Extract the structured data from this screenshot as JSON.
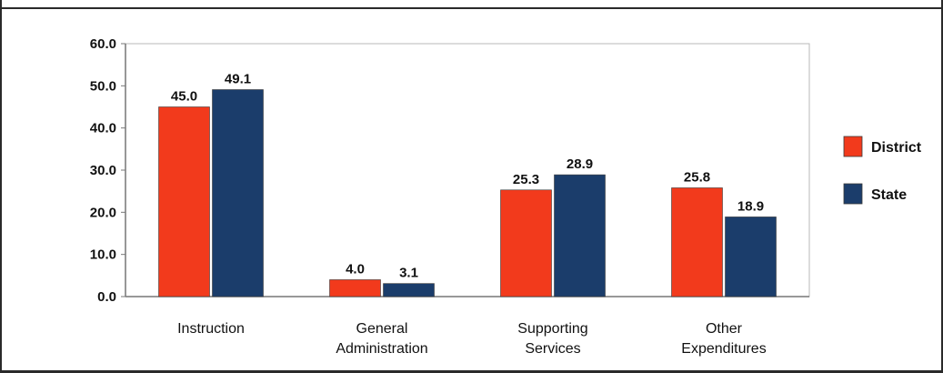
{
  "chart_data": {
    "type": "bar",
    "categories": [
      "Instruction",
      "General Administration",
      "Supporting Services",
      "Other Expenditures"
    ],
    "category_lines": [
      [
        "Instruction"
      ],
      [
        "General",
        "Administration"
      ],
      [
        "Supporting",
        "Services"
      ],
      [
        "Other",
        "Expenditures"
      ]
    ],
    "series": [
      {
        "name": "District",
        "color": "#f23a1c",
        "values": [
          45.0,
          4.0,
          25.3,
          25.8
        ],
        "labels": [
          "45.0",
          "4.0",
          "25.3",
          "25.8"
        ]
      },
      {
        "name": "State",
        "color": "#1b3d6b",
        "values": [
          49.1,
          3.1,
          28.9,
          18.9
        ],
        "labels": [
          "49.1",
          "3.1",
          "28.9",
          "18.9"
        ]
      }
    ],
    "ylim": [
      0,
      60
    ],
    "yticks": [
      "0.0",
      "10.0",
      "20.0",
      "30.0",
      "40.0",
      "50.0",
      "60.0"
    ],
    "grid": false,
    "legend": "right",
    "title": "",
    "xlabel": "",
    "ylabel": ""
  }
}
